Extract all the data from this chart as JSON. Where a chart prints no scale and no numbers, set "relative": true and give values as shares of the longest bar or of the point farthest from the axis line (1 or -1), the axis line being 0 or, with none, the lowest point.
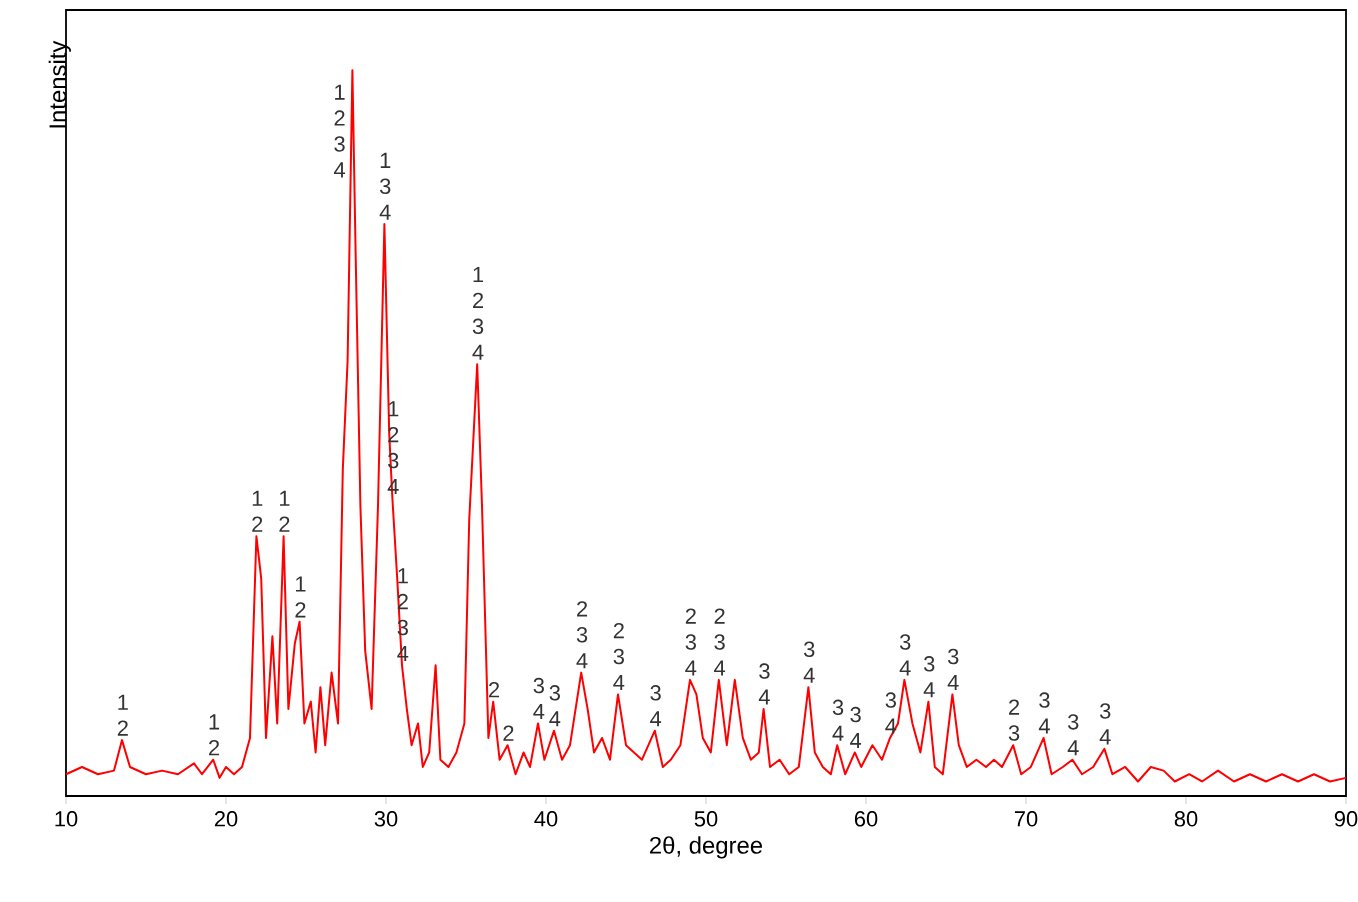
{
  "chart_data": {
    "type": "line",
    "relative": true,
    "xlabel": "2θ, degree",
    "ylabel": "Intensity",
    "xlim": [
      10,
      90
    ],
    "xticks": [
      10,
      20,
      30,
      40,
      50,
      60,
      70,
      80,
      90
    ],
    "grid": false,
    "marker": "none",
    "series": [
      {
        "color": "#ff0000",
        "x": [
          10,
          11,
          12,
          13,
          13.5,
          14,
          15,
          16,
          17,
          18,
          18.5,
          19.2,
          19.6,
          20,
          20.5,
          21,
          21.5,
          21.9,
          22.2,
          22.5,
          22.9,
          23.2,
          23.6,
          23.9,
          24.3,
          24.6,
          24.9,
          25.3,
          25.6,
          25.9,
          26.2,
          26.6,
          27.0,
          27.3,
          27.6,
          27.9,
          28.1,
          28.4,
          28.7,
          29.1,
          29.5,
          29.9,
          30.2,
          30.4,
          30.7,
          31.0,
          31.3,
          31.6,
          32.0,
          32.3,
          32.7,
          33.1,
          33.4,
          33.9,
          34.4,
          34.9,
          35.2,
          35.7,
          36.0,
          36.4,
          36.7,
          37.1,
          37.6,
          38.1,
          38.6,
          39.0,
          39.5,
          39.9,
          40.5,
          41.0,
          41.5,
          42.2,
          42.6,
          43.0,
          43.5,
          44.0,
          44.5,
          45.0,
          45.5,
          46.0,
          46.8,
          47.3,
          47.8,
          48.4,
          49.0,
          49.4,
          49.8,
          50.3,
          50.8,
          51.3,
          51.8,
          52.3,
          52.8,
          53.3,
          53.6,
          54.0,
          54.6,
          55.2,
          55.8,
          56.4,
          56.8,
          57.3,
          57.8,
          58.2,
          58.7,
          59.3,
          59.7,
          60.4,
          61.0,
          61.5,
          62.0,
          62.4,
          62.9,
          63.4,
          63.9,
          64.3,
          64.8,
          65.4,
          65.8,
          66.3,
          66.9,
          67.5,
          68.0,
          68.5,
          69.2,
          69.7,
          70.3,
          71.1,
          71.6,
          72.3,
          72.9,
          73.5,
          74.2,
          74.9,
          75.4,
          76.2,
          77.0,
          77.8,
          78.6,
          79.3,
          80.2,
          81.0,
          82.0,
          83.0,
          84.0,
          85.0,
          86.0,
          87.0,
          88.0,
          89.0,
          90.0
        ],
        "values": [
          0.03,
          0.04,
          0.03,
          0.035,
          0.077,
          0.04,
          0.03,
          0.035,
          0.03,
          0.045,
          0.03,
          0.05,
          0.025,
          0.04,
          0.03,
          0.04,
          0.08,
          0.358,
          0.3,
          0.08,
          0.22,
          0.1,
          0.358,
          0.12,
          0.21,
          0.24,
          0.1,
          0.13,
          0.06,
          0.15,
          0.07,
          0.17,
          0.1,
          0.45,
          0.6,
          1.0,
          0.75,
          0.4,
          0.2,
          0.12,
          0.4,
          0.788,
          0.5,
          0.41,
          0.3,
          0.18,
          0.12,
          0.07,
          0.1,
          0.04,
          0.06,
          0.18,
          0.05,
          0.04,
          0.06,
          0.1,
          0.38,
          0.595,
          0.4,
          0.08,
          0.13,
          0.05,
          0.07,
          0.03,
          0.06,
          0.04,
          0.1,
          0.05,
          0.09,
          0.05,
          0.07,
          0.17,
          0.12,
          0.06,
          0.08,
          0.05,
          0.14,
          0.07,
          0.06,
          0.05,
          0.09,
          0.04,
          0.05,
          0.07,
          0.16,
          0.14,
          0.08,
          0.06,
          0.16,
          0.07,
          0.16,
          0.08,
          0.05,
          0.06,
          0.12,
          0.04,
          0.05,
          0.03,
          0.04,
          0.15,
          0.06,
          0.04,
          0.03,
          0.07,
          0.03,
          0.06,
          0.04,
          0.07,
          0.05,
          0.08,
          0.1,
          0.16,
          0.1,
          0.06,
          0.13,
          0.04,
          0.03,
          0.14,
          0.07,
          0.04,
          0.05,
          0.04,
          0.05,
          0.04,
          0.07,
          0.03,
          0.04,
          0.08,
          0.03,
          0.04,
          0.05,
          0.03,
          0.04,
          0.065,
          0.03,
          0.04,
          0.02,
          0.04,
          0.035,
          0.02,
          0.03,
          0.02,
          0.035,
          0.02,
          0.03,
          0.02,
          0.03,
          0.02,
          0.03,
          0.02,
          0.025
        ]
      }
    ],
    "annotations": [
      {
        "text": "1 2",
        "x": 13.5,
        "y": 0.077
      },
      {
        "text": "1 2",
        "x": 19.2,
        "y": 0.05
      },
      {
        "text": "1 2",
        "x": 21.9,
        "y": 0.358
      },
      {
        "text": "1 2",
        "x": 23.6,
        "y": 0.358
      },
      {
        "text": "1 2",
        "x": 24.6,
        "y": 0.24
      },
      {
        "text": "1 2 3 4",
        "x": 27.9,
        "y": 1.0
      },
      {
        "text": "1 3 4",
        "x": 29.9,
        "y": 0.788
      },
      {
        "text": "1 2 3 4",
        "x": 30.4,
        "y": 0.41
      },
      {
        "text": "1 2 3 4",
        "x": 31.0,
        "y": 0.18
      },
      {
        "text": "1 2 3 4",
        "x": 35.7,
        "y": 0.595
      },
      {
        "text": "2",
        "x": 36.7,
        "y": 0.13
      },
      {
        "text": "2",
        "x": 37.6,
        "y": 0.07
      },
      {
        "text": "3 4",
        "x": 39.5,
        "y": 0.1
      },
      {
        "text": "3 4",
        "x": 40.5,
        "y": 0.09
      },
      {
        "text": "2 3 4",
        "x": 42.2,
        "y": 0.17
      },
      {
        "text": "2 3 4",
        "x": 44.5,
        "y": 0.14
      },
      {
        "text": "3 4",
        "x": 46.8,
        "y": 0.09
      },
      {
        "text": "2 3 4",
        "x": 49.0,
        "y": 0.16
      },
      {
        "text": "2 3 4",
        "x": 50.8,
        "y": 0.16
      },
      {
        "text": "3 4",
        "x": 53.6,
        "y": 0.12
      },
      {
        "text": "3 4",
        "x": 56.4,
        "y": 0.15
      },
      {
        "text": "3 4",
        "x": 58.2,
        "y": 0.07
      },
      {
        "text": "3 4",
        "x": 59.3,
        "y": 0.06
      },
      {
        "text": "3 4",
        "x": 61.5,
        "y": 0.08
      },
      {
        "text": "3 4",
        "x": 62.4,
        "y": 0.16
      },
      {
        "text": "3 4",
        "x": 63.9,
        "y": 0.13
      },
      {
        "text": "3 4",
        "x": 65.4,
        "y": 0.14
      },
      {
        "text": "2 3",
        "x": 69.2,
        "y": 0.07
      },
      {
        "text": "3 4",
        "x": 71.1,
        "y": 0.08
      },
      {
        "text": "3 4",
        "x": 72.9,
        "y": 0.05
      },
      {
        "text": "3 4",
        "x": 74.9,
        "y": 0.065
      }
    ]
  }
}
